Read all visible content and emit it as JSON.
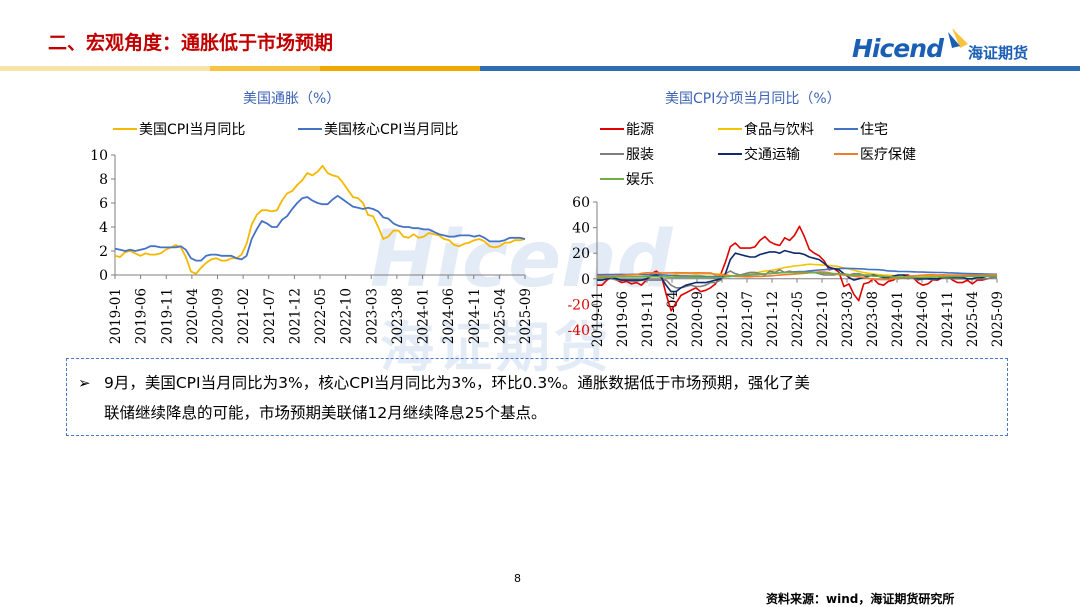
{
  "slide": {
    "title": "二、宏观角度：通胀低于市场预期",
    "page_number": "8",
    "source": "资料来源：wind，海证期货研究所"
  },
  "logo": {
    "en": "Hicend",
    "cn": "海证期货"
  },
  "watermark": {
    "en": "Hicend",
    "cn": "海证期货"
  },
  "colors": {
    "title_red": "#c00000",
    "accent_blue": "#1a5fb4",
    "bar_yellow": "#f6c343",
    "bar_blue": "#2e6db4"
  },
  "note": {
    "line1": "9月，美国CPI当月同比为3%，核心CPI当月同比为3%，环比0.3%。通胀数据低于市场预期，强化了美",
    "line2": "联储继续降息的可能，市场预期美联储12月继续降息25个基点。"
  },
  "chart_data": [
    {
      "type": "line",
      "title": "美国通胀（%）",
      "x_ticks": [
        "2019-01",
        "2019-06",
        "2019-11",
        "2020-04",
        "2020-09",
        "2021-02",
        "2021-07",
        "2021-12",
        "2022-05",
        "2022-10",
        "2023-03",
        "2023-08",
        "2024-01",
        "2024-06",
        "2024-11",
        "2025-04",
        "2025-09"
      ],
      "ylim": [
        0,
        10
      ],
      "y_ticks": [
        0,
        2,
        4,
        6,
        8,
        10
      ],
      "legend": "top",
      "series": [
        {
          "name": "美国CPI当月同比",
          "color": "#f5b800",
          "values": [
            1.6,
            1.5,
            1.9,
            2.0,
            1.8,
            1.6,
            1.8,
            1.7,
            1.7,
            1.8,
            2.1,
            2.3,
            2.5,
            2.3,
            1.5,
            0.3,
            0.1,
            0.6,
            1.0,
            1.3,
            1.4,
            1.2,
            1.2,
            1.4,
            1.4,
            1.7,
            2.6,
            4.2,
            5.0,
            5.4,
            5.4,
            5.3,
            5.4,
            6.2,
            6.8,
            7.0,
            7.5,
            7.9,
            8.5,
            8.3,
            8.6,
            9.1,
            8.5,
            8.3,
            8.2,
            7.7,
            7.1,
            6.5,
            6.4,
            6.0,
            5.0,
            4.9,
            4.0,
            3.0,
            3.2,
            3.7,
            3.7,
            3.2,
            3.1,
            3.4,
            3.1,
            3.2,
            3.5,
            3.4,
            3.3,
            3.0,
            2.9,
            2.5,
            2.4,
            2.6,
            2.7,
            2.9,
            3.0,
            2.8,
            2.4,
            2.3,
            2.4,
            2.7,
            2.7,
            2.9,
            2.9,
            3.0
          ]
        },
        {
          "name": "美国核心CPI当月同比",
          "color": "#4472c4",
          "values": [
            2.2,
            2.1,
            2.0,
            2.1,
            2.0,
            2.1,
            2.2,
            2.4,
            2.4,
            2.3,
            2.3,
            2.3,
            2.3,
            2.4,
            2.1,
            1.4,
            1.2,
            1.2,
            1.6,
            1.7,
            1.7,
            1.6,
            1.6,
            1.6,
            1.4,
            1.3,
            1.6,
            3.0,
            3.8,
            4.5,
            4.3,
            4.0,
            4.0,
            4.6,
            4.9,
            5.5,
            6.0,
            6.4,
            6.5,
            6.2,
            6.0,
            5.9,
            5.9,
            6.3,
            6.6,
            6.3,
            6.0,
            5.7,
            5.6,
            5.5,
            5.6,
            5.5,
            5.3,
            4.8,
            4.7,
            4.3,
            4.1,
            4.0,
            4.0,
            3.9,
            3.9,
            3.8,
            3.8,
            3.6,
            3.4,
            3.3,
            3.2,
            3.2,
            3.3,
            3.3,
            3.3,
            3.2,
            3.3,
            3.1,
            2.8,
            2.8,
            2.8,
            2.9,
            3.1,
            3.1,
            3.1,
            3.0
          ]
        }
      ]
    },
    {
      "type": "line",
      "title": "美国CPI分项当月同比（%）",
      "x_ticks": [
        "2019-01",
        "2019-06",
        "2019-11",
        "2020-04",
        "2020-09",
        "2021-02",
        "2021-07",
        "2021-12",
        "2022-05",
        "2022-10",
        "2023-03",
        "2023-08",
        "2024-01",
        "2024-06",
        "2024-11",
        "2025-04",
        "2025-09"
      ],
      "ylim": [
        -40,
        60
      ],
      "y_ticks": [
        -40,
        -20,
        0,
        20,
        40,
        60
      ],
      "legend": "top",
      "series": [
        {
          "name": "能源",
          "color": "#e00000",
          "values": [
            -5,
            -5,
            -1,
            1,
            -1,
            -3,
            -2,
            -4,
            -3,
            -5,
            -1,
            4,
            6,
            3,
            -12,
            -25,
            -19,
            -13,
            -11,
            -9,
            -7,
            -10,
            -9,
            -7,
            -4,
            3,
            13,
            25,
            28,
            24,
            24,
            24,
            25,
            30,
            33,
            29,
            27,
            26,
            32,
            30,
            34,
            41,
            33,
            23,
            20,
            18,
            14,
            7,
            8,
            5,
            -6,
            -4,
            -12,
            -17,
            -4,
            -3,
            0,
            -4,
            -5,
            -2,
            -1,
            2,
            3,
            3,
            1,
            -3,
            -5,
            -4,
            -1,
            -1,
            1,
            2,
            -1,
            -3,
            -3,
            -1,
            -4,
            -1,
            -1,
            0,
            1,
            2
          ]
        },
        {
          "name": "食品与饮料",
          "color": "#f5c400",
          "values": [
            1.6,
            1.6,
            1.6,
            1.8,
            1.8,
            1.8,
            1.8,
            1.8,
            1.8,
            2.0,
            2.0,
            1.8,
            1.8,
            1.8,
            1.9,
            3.0,
            3.5,
            4.0,
            4.1,
            3.9,
            3.6,
            3.9,
            3.9,
            3.8,
            3.8,
            3.6,
            3.5,
            2.4,
            2.2,
            2.4,
            3.3,
            3.7,
            4.5,
            5.3,
            6.1,
            6.3,
            7.0,
            7.9,
            8.8,
            9.4,
            10.1,
            10.4,
            10.9,
            11.4,
            11.2,
            10.9,
            10.6,
            10.4,
            10.1,
            9.5,
            8.5,
            7.7,
            6.7,
            5.7,
            4.9,
            4.3,
            3.7,
            3.3,
            2.9,
            2.7,
            2.6,
            2.2,
            2.2,
            2.2,
            2.1,
            2.2,
            2.2,
            2.2,
            2.1,
            2.1,
            2.3,
            2.4,
            2.5,
            2.5,
            2.7,
            2.5,
            2.6,
            2.9,
            3.0,
            2.9,
            3.1,
            3.1
          ]
        },
        {
          "name": "住宅",
          "color": "#4472c4",
          "values": [
            3.2,
            3.2,
            3.3,
            3.3,
            3.4,
            3.4,
            3.3,
            3.4,
            3.4,
            3.4,
            3.2,
            3.3,
            3.3,
            3.1,
            3.0,
            2.6,
            2.4,
            2.3,
            2.3,
            2.2,
            2.2,
            2.1,
            1.9,
            1.8,
            1.7,
            1.5,
            1.6,
            1.8,
            2.1,
            2.6,
            2.8,
            2.9,
            3.2,
            3.5,
            3.8,
            4.1,
            4.4,
            4.7,
            5.0,
            5.2,
            5.5,
            5.6,
            5.7,
            6.2,
            6.6,
            6.9,
            7.1,
            7.5,
            7.9,
            8.0,
            8.2,
            8.1,
            8.0,
            7.8,
            7.7,
            7.3,
            7.2,
            7.1,
            6.7,
            6.2,
            6.0,
            5.8,
            5.7,
            5.6,
            5.5,
            5.3,
            5.2,
            5.1,
            5.0,
            4.9,
            4.9,
            4.7,
            4.6,
            4.4,
            4.2,
            4.1,
            4.0,
            3.9,
            3.8,
            3.7,
            3.6,
            3.6
          ]
        },
        {
          "name": "服装",
          "color": "#7f7f7f",
          "values": [
            -1,
            -1,
            0,
            0,
            -1,
            -1,
            -1,
            -2,
            -2,
            -1,
            -1,
            -1,
            -1,
            -1,
            -1,
            -5,
            -7,
            -7,
            -6,
            -5,
            -6,
            -6,
            -5,
            -3,
            -3,
            -1,
            4,
            6,
            4,
            3,
            4,
            5,
            5,
            4,
            3,
            6,
            5,
            7,
            5,
            6,
            5,
            5,
            5,
            5,
            5,
            4,
            3,
            3,
            3,
            4,
            4,
            3,
            4,
            4,
            3,
            3,
            2,
            2,
            2,
            1,
            1,
            0,
            1,
            0,
            1,
            -1,
            0,
            0,
            -1,
            0,
            1,
            1,
            0,
            0,
            0,
            0,
            0,
            0,
            0,
            0,
            1,
            1
          ]
        },
        {
          "name": "交通运输",
          "color": "#0d2a6b",
          "values": [
            -1,
            -1,
            0,
            1,
            0,
            -1,
            -1,
            -1,
            -1,
            -1,
            0,
            2,
            3,
            1,
            -5,
            -10,
            -10,
            -7,
            -5,
            -4,
            -3,
            -3,
            -3,
            -2,
            -1,
            0,
            4,
            15,
            20,
            19,
            18,
            17,
            17,
            19,
            20,
            21,
            21,
            20,
            22,
            21,
            20,
            20,
            19,
            17,
            16,
            15,
            12,
            9,
            8,
            7,
            4,
            1,
            -1,
            0,
            1,
            2,
            3,
            2,
            1,
            1,
            2,
            3,
            3,
            2,
            1,
            0,
            0,
            0,
            0,
            0,
            1,
            1,
            1,
            1,
            1,
            0,
            0,
            1,
            1,
            2,
            2,
            3
          ]
        },
        {
          "name": "医疗保健",
          "color": "#ed7d31",
          "values": [
            2.0,
            2.1,
            2.0,
            1.9,
            2.3,
            2.5,
            3.0,
            3.1,
            3.3,
            4.2,
            4.7,
            4.6,
            4.6,
            4.5,
            4.6,
            4.6,
            4.8,
            4.7,
            4.7,
            4.6,
            4.7,
            4.7,
            4.6,
            4.6,
            3.0,
            2.9,
            2.8,
            2.2,
            1.9,
            1.7,
            1.6,
            1.6,
            1.8,
            1.9,
            2.0,
            2.3,
            2.6,
            2.9,
            3.2,
            3.4,
            3.7,
            4.0,
            4.3,
            4.7,
            5.0,
            5.4,
            5.2,
            4.8,
            3.7,
            3.3,
            2.9,
            2.4,
            2.0,
            1.5,
            0.9,
            0.3,
            -0.3,
            -0.6,
            -0.6,
            -0.6,
            0.1,
            0.8,
            1.3,
            1.9,
            2.2,
            2.5,
            3.0,
            3.1,
            3.1,
            3.0,
            3.1,
            3.0,
            2.9,
            2.9,
            2.8,
            2.9,
            2.8,
            2.8,
            2.9,
            3.0,
            3.1,
            3.2
          ]
        },
        {
          "name": "娱乐",
          "color": "#70ad47",
          "values": [
            1.0,
            1.2,
            1.1,
            1.3,
            1.5,
            1.4,
            1.6,
            1.6,
            1.6,
            1.6,
            1.6,
            1.7,
            1.7,
            1.6,
            1.5,
            1.2,
            1.1,
            1.0,
            1.0,
            1.1,
            1.2,
            1.0,
            1.0,
            0.9,
            0.8,
            1.0,
            1.4,
            2.0,
            2.3,
            2.5,
            3.0,
            3.2,
            3.4,
            3.6,
            3.9,
            4.2,
            4.5,
            4.8,
            4.9,
            4.9,
            5.0,
            5.1,
            5.0,
            4.9,
            4.8,
            4.5,
            4.3,
            4.2,
            4.1,
            3.9,
            3.6,
            3.3,
            3.1,
            2.8,
            2.6,
            2.4,
            2.2,
            2.0,
            1.9,
            1.7,
            1.5,
            1.3,
            1.2,
            1.1,
            1.0,
            1.0,
            1.1,
            1.2,
            1.3,
            1.4,
            1.5,
            1.6,
            1.7,
            1.7,
            1.8,
            1.8,
            1.9,
            1.9,
            2.0,
            2.0,
            2.1,
            2.1
          ]
        }
      ]
    }
  ]
}
